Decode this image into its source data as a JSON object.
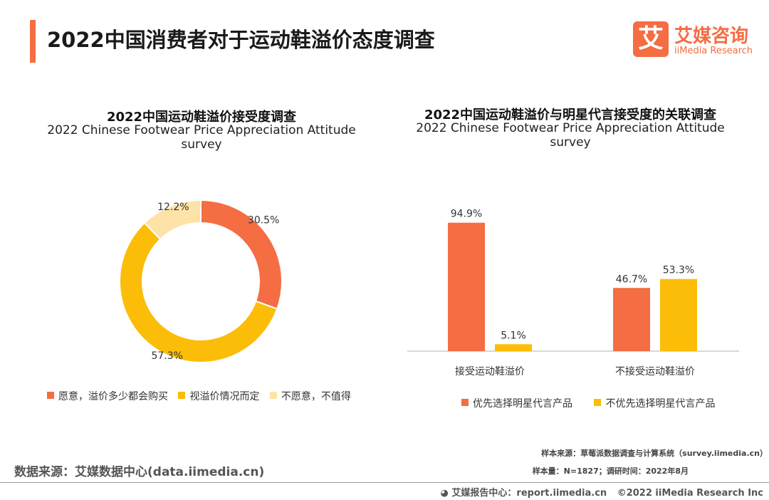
{
  "page": {
    "title": "2022中国消费者对于运动鞋溢价态度调查"
  },
  "logo": {
    "mark": "艾",
    "name_cn": "艾媒咨询",
    "name_en": "iiMedia Research"
  },
  "colors": {
    "accent": "#f46d43",
    "orange": "#f46d43",
    "yellow": "#fbbd08",
    "pale": "#fde3a7",
    "axis": "#cccccc"
  },
  "chart_data": [
    {
      "type": "pie",
      "title": "2022中国运动鞋溢价接受度调查",
      "subtitle": "2022 Chinese Footwear Price Appreciation Attitude survey",
      "categories": [
        "愿意，溢价多少都会购买",
        "视溢价情况而定",
        "不愿意，不值得"
      ],
      "values": [
        30.5,
        57.3,
        12.2
      ],
      "labels": [
        "30.5%",
        "57.3%",
        "12.2%"
      ],
      "donut": true,
      "legend_position": "bottom"
    },
    {
      "type": "bar",
      "title": "2022中国运动鞋溢价与明星代言接受度的关联调查",
      "subtitle": "2022 Chinese Footwear Price Appreciation Attitude survey",
      "categories": [
        "接受运动鞋溢价",
        "不接受运动鞋溢价"
      ],
      "series": [
        {
          "name": "优先选择明星代言产品",
          "values": [
            94.9,
            46.7
          ],
          "labels": [
            "94.9%",
            "46.7%"
          ]
        },
        {
          "name": "不优先选择明星代言产品",
          "values": [
            5.1,
            53.3
          ],
          "labels": [
            "5.1%",
            "53.3%"
          ]
        }
      ],
      "ylim": [
        0,
        100
      ],
      "grid": false,
      "legend_position": "bottom"
    }
  ],
  "footer": {
    "source": "数据来源：艾媒数据中心(data.iimedia.cn)",
    "sample_source": "样本来源：草莓派数据调查与计算系统（survey.iimedia.cn）",
    "sample_size": "样本量：N=1827；调研时间：2022年8月",
    "report_center": "艾媒报告中心：report.iimedia.cn",
    "copyright": "©2022  iiMedia Research  Inc"
  }
}
